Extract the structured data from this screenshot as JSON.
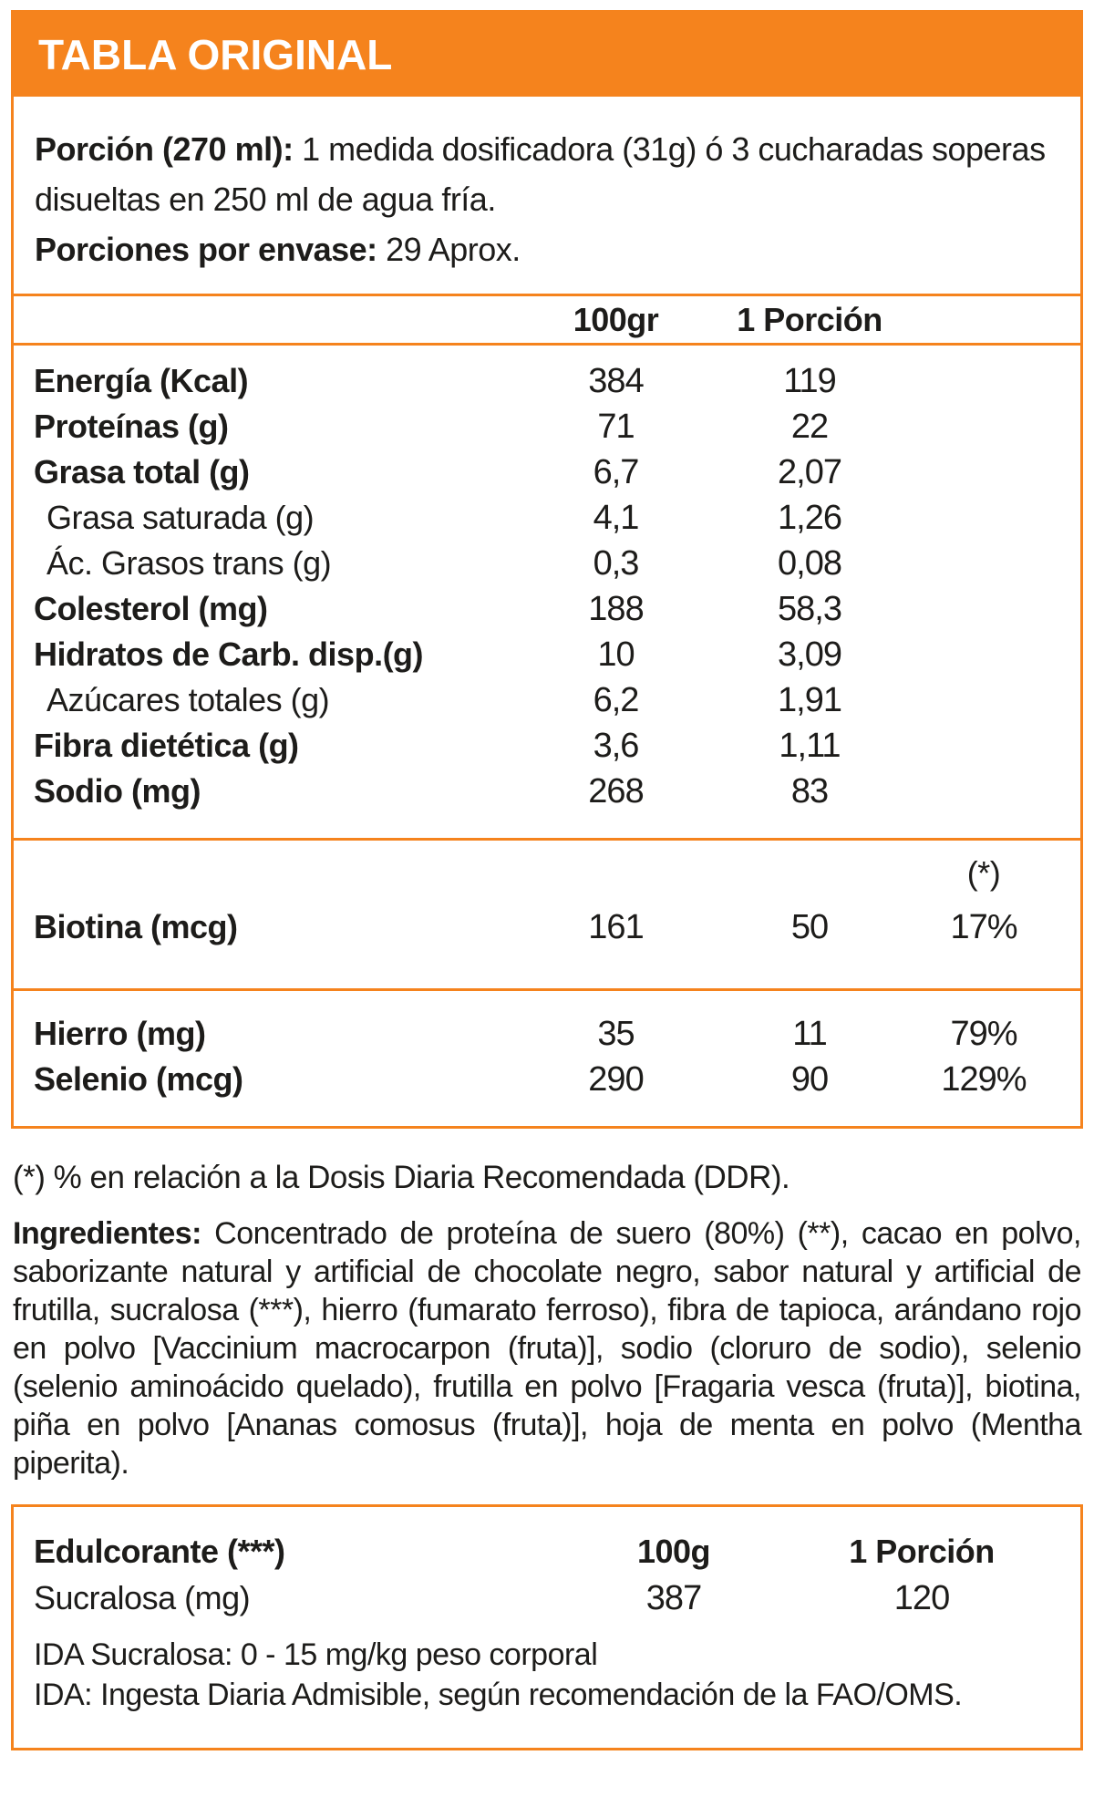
{
  "colors": {
    "accent": "#F5831D",
    "text": "#1D1C1A",
    "title_text": "#FFFFFF"
  },
  "title": "TABLA ORIGINAL",
  "serving": {
    "porcion_label": "Porción (270 ml):",
    "porcion_text": " 1 medida dosificadora (31g) ó 3 cucharadas soperas disueltas en 250 ml de agua fría.",
    "envase_label": "Porciones por envase:",
    "envase_text": " 29 Aprox."
  },
  "main_table": {
    "col_headers": [
      "100gr",
      "1 Porción"
    ],
    "rows": [
      {
        "label": "Energía (Kcal)",
        "per100": "384",
        "porcion": "119",
        "indent": false
      },
      {
        "label": "Proteínas (g)",
        "per100": "71",
        "porcion": "22",
        "indent": false
      },
      {
        "label": "Grasa total (g)",
        "per100": "6,7",
        "porcion": "2,07",
        "indent": false
      },
      {
        "label": "Grasa saturada (g)",
        "per100": "4,1",
        "porcion": "1,26",
        "indent": true
      },
      {
        "label": "Ác. Grasos trans (g)",
        "per100": "0,3",
        "porcion": "0,08",
        "indent": true
      },
      {
        "label": "Colesterol (mg)",
        "per100": "188",
        "porcion": "58,3",
        "indent": false
      },
      {
        "label": "Hidratos de Carb. disp.(g)",
        "per100": "10",
        "porcion": "3,09",
        "indent": false
      },
      {
        "label": "Azúcares totales (g)",
        "per100": "6,2",
        "porcion": "1,91",
        "indent": true
      },
      {
        "label": "Fibra dietética (g)",
        "per100": "3,6",
        "porcion": "1,11",
        "indent": false
      },
      {
        "label": "Sodio (mg)",
        "per100": "268",
        "porcion": "83",
        "indent": false
      }
    ],
    "ddr_marker": "(*)",
    "vitamins": [
      {
        "label": "Biotina (mcg)",
        "per100": "161",
        "porcion": "50",
        "ddr": "17%"
      }
    ],
    "minerals": [
      {
        "label": "Hierro (mg)",
        "per100": "35",
        "porcion": "11",
        "ddr": "79%"
      },
      {
        "label": "Selenio (mcg)",
        "per100": "290",
        "porcion": "90",
        "ddr": "129%"
      }
    ]
  },
  "footnote_ddr": "(*) % en relación a la Dosis Diaria Recomendada (DDR).",
  "ingredients": {
    "label": "Ingredientes:",
    "text": " Concentrado de proteína de suero (80%) (**), cacao en polvo, saborizante natural y artificial de chocolate negro, sabor natural y artificial de frutilla, sucralosa (***), hierro (fumarato ferroso), fibra de tapioca, arándano rojo en polvo [Vaccinium macrocarpon (fruta)], sodio (cloruro de sodio), selenio (selenio aminoácido quelado), frutilla en polvo [Fragaria vesca (fruta)], biotina, piña en polvo [Ananas comosus (fruta)], hoja de menta en polvo (Mentha piperita)."
  },
  "sweetener_table": {
    "header_label": "Edulcorante (***)",
    "col_headers": [
      "100g",
      "1 Porción"
    ],
    "rows": [
      {
        "label": "Sucralosa (mg)",
        "per100": "387",
        "porcion": "120"
      }
    ],
    "ida_line1": "IDA Sucralosa: 0 - 15 mg/kg peso corporal",
    "ida_line2": "IDA: Ingesta Diaria Admisible, según recomendación de la FAO/OMS."
  }
}
